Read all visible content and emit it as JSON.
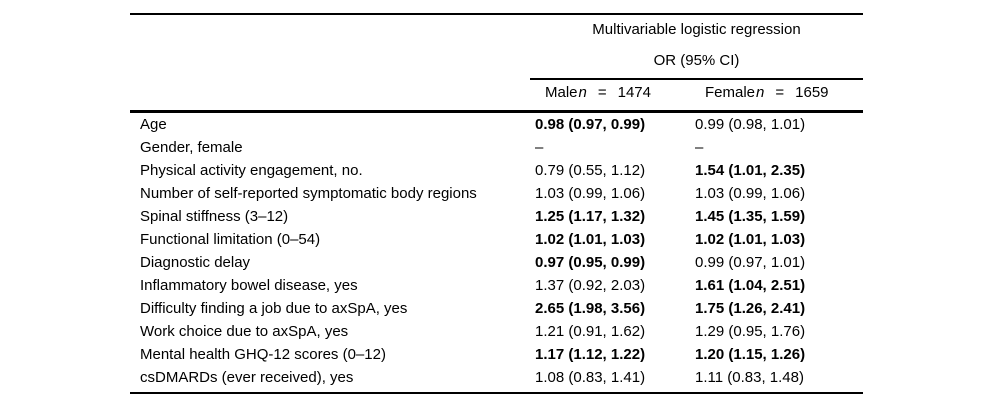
{
  "page": {
    "background_color": "#ffffff",
    "text_color": "#000000",
    "rule_color": "#000000"
  },
  "table": {
    "header": {
      "group_title": "Multivariable logistic regression",
      "group_subtitle": "OR (95% CI)",
      "columns": [
        {
          "group": "Male",
          "n_symbol": "n",
          "eq": "=",
          "n_value": "1474"
        },
        {
          "group": "Female",
          "n_symbol": "n",
          "eq": "=",
          "n_value": "1659"
        }
      ]
    },
    "rows": [
      {
        "label": "Age",
        "male": "0.98 (0.97, 0.99)",
        "male_bold": true,
        "female": "0.99 (0.98, 1.01)",
        "female_bold": false
      },
      {
        "label": "Gender, female",
        "male": "–",
        "male_bold": false,
        "female": "–",
        "female_bold": false
      },
      {
        "label": "Physical activity engagement, no.",
        "male": "0.79 (0.55, 1.12)",
        "male_bold": false,
        "female": "1.54 (1.01, 2.35)",
        "female_bold": true
      },
      {
        "label": "Number of self-reported symptomatic body regions",
        "male": "1.03 (0.99, 1.06)",
        "male_bold": false,
        "female": "1.03 (0.99, 1.06)",
        "female_bold": false
      },
      {
        "label": "Spinal stiffness (3–12)",
        "male": "1.25 (1.17, 1.32)",
        "male_bold": true,
        "female": "1.45 (1.35, 1.59)",
        "female_bold": true
      },
      {
        "label": "Functional limitation (0–54)",
        "male": "1.02 (1.01, 1.03)",
        "male_bold": true,
        "female": "1.02 (1.01, 1.03)",
        "female_bold": true
      },
      {
        "label": "Diagnostic delay",
        "male": "0.97 (0.95, 0.99)",
        "male_bold": true,
        "female": "0.99 (0.97, 1.01)",
        "female_bold": false
      },
      {
        "label": "Inflammatory bowel disease, yes",
        "male": "1.37 (0.92, 2.03)",
        "male_bold": false,
        "female": "1.61 (1.04, 2.51)",
        "female_bold": true
      },
      {
        "label": "Difficulty finding a job due to axSpA, yes",
        "male": "2.65 (1.98, 3.56)",
        "male_bold": true,
        "female": "1.75 (1.26, 2.41)",
        "female_bold": true
      },
      {
        "label": "Work choice due to axSpA, yes",
        "male": "1.21 (0.91, 1.62)",
        "male_bold": false,
        "female": "1.29 (0.95, 1.76)",
        "female_bold": false
      },
      {
        "label": "Mental health GHQ-12 scores (0–12)",
        "male": "1.17 (1.12, 1.22)",
        "male_bold": true,
        "female": "1.20 (1.15, 1.26)",
        "female_bold": true
      },
      {
        "label": "csDMARDs (ever received), yes",
        "male": "1.08 (0.83, 1.41)",
        "male_bold": false,
        "female": "1.11 (0.83, 1.48)",
        "female_bold": false
      }
    ]
  }
}
